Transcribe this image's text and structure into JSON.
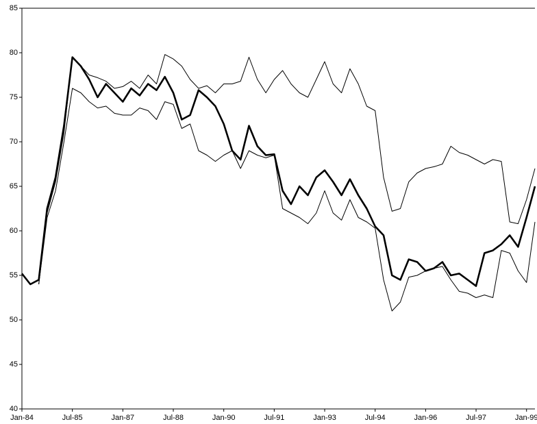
{
  "chart_data": {
    "type": "line",
    "x": [
      "Jan-84",
      "Apr-84",
      "Jul-84",
      "Oct-84",
      "Jan-85",
      "Apr-85",
      "Jul-85",
      "Oct-85",
      "Jan-86",
      "Apr-86",
      "Jul-86",
      "Oct-86",
      "Jan-87",
      "Apr-87",
      "Jul-87",
      "Oct-87",
      "Jan-88",
      "Apr-88",
      "Jul-88",
      "Oct-88",
      "Jan-89",
      "Apr-89",
      "Jul-89",
      "Oct-89",
      "Jan-90",
      "Apr-90",
      "Jul-90",
      "Oct-90",
      "Jan-91",
      "Apr-91",
      "Jul-91",
      "Oct-91",
      "Jan-92",
      "Apr-92",
      "Jul-92",
      "Oct-92",
      "Jan-93",
      "Apr-93",
      "Jul-93",
      "Oct-93",
      "Jan-94",
      "Apr-94",
      "Jul-94",
      "Oct-94",
      "Jan-95",
      "Apr-95",
      "Jul-95",
      "Oct-95",
      "Jan-96",
      "Apr-96",
      "Jul-96",
      "Oct-96",
      "Jan-97",
      "Apr-97",
      "Jul-97",
      "Oct-97",
      "Jan-98",
      "Apr-98",
      "Jul-98",
      "Oct-98",
      "Jan-99",
      "Apr-99"
    ],
    "series": [
      {
        "color": "#000000",
        "values": [
          55.2,
          54,
          54.5,
          62.5,
          66,
          71.8,
          79.5,
          78.5,
          77,
          75,
          76.5,
          75.5,
          74.5,
          76,
          75.2,
          76.5,
          75.8,
          77.3,
          75.5,
          72.5,
          73,
          75.8,
          75,
          74,
          72,
          69,
          68,
          71.8,
          69.5,
          68.5,
          68.6,
          64.5,
          63,
          65,
          64,
          66,
          66.8,
          65.5,
          64,
          65.8,
          64,
          62.5,
          60.5,
          59.5,
          55,
          54.5,
          56.8,
          56.5,
          55.5,
          55.8,
          56.5,
          55,
          55.2,
          54.5,
          53.8,
          57.5,
          57.8,
          58.5,
          59.5,
          58.2,
          61.5,
          65
        ]
      },
      {
        "color": "#000000",
        "values": [
          null,
          null,
          54,
          62,
          65.5,
          71,
          79.5,
          78.5,
          77.5,
          77.2,
          76.8,
          76,
          76.2,
          76.8,
          76,
          77.5,
          76.5,
          79.8,
          79.3,
          78.5,
          77,
          76,
          76.3,
          75.5,
          76.5,
          76.5,
          76.8,
          79.5,
          77,
          75.5,
          77,
          78,
          76.5,
          75.5,
          75,
          77,
          79,
          76.5,
          75.5,
          78.2,
          76.5,
          74,
          73.5,
          66,
          62.2,
          62.5,
          65.5,
          66.5,
          67,
          67.2,
          67.5,
          69.5,
          68.8,
          68.5,
          68,
          67.5,
          68,
          67.8,
          61,
          60.8,
          63.5,
          67
        ]
      },
      {
        "color": "#000000",
        "values": [
          null,
          null,
          54,
          61.5,
          64.5,
          70,
          76,
          75.5,
          74.5,
          73.8,
          74,
          73.2,
          73,
          73,
          73.8,
          73.5,
          72.5,
          74.5,
          74.2,
          71.5,
          72,
          69,
          68.5,
          67.8,
          68.5,
          69,
          67,
          69,
          68.5,
          68.2,
          68.5,
          62.5,
          62,
          61.5,
          60.8,
          62,
          64.5,
          62,
          61.2,
          63.5,
          61.5,
          61,
          60.3,
          54.5,
          51,
          52,
          54.8,
          55,
          55.5,
          55.8,
          56,
          54.5,
          53.2,
          53,
          52.5,
          52.8,
          52.5,
          57.8,
          57.5,
          55.5,
          54.2,
          61
        ]
      }
    ],
    "xlim": [
      "Jan-84",
      "Apr-99"
    ],
    "xticks": [
      "Jan-84",
      "Jul-85",
      "Jan-87",
      "Jul-88",
      "Jan-90",
      "Jul-91",
      "Jan-93",
      "Jul-94",
      "Jan-96",
      "Jul-97",
      "Jan-99"
    ],
    "ylim": [
      40,
      85
    ],
    "yticks": [
      40,
      45,
      50,
      55,
      60,
      65,
      70,
      75,
      80,
      85
    ]
  }
}
